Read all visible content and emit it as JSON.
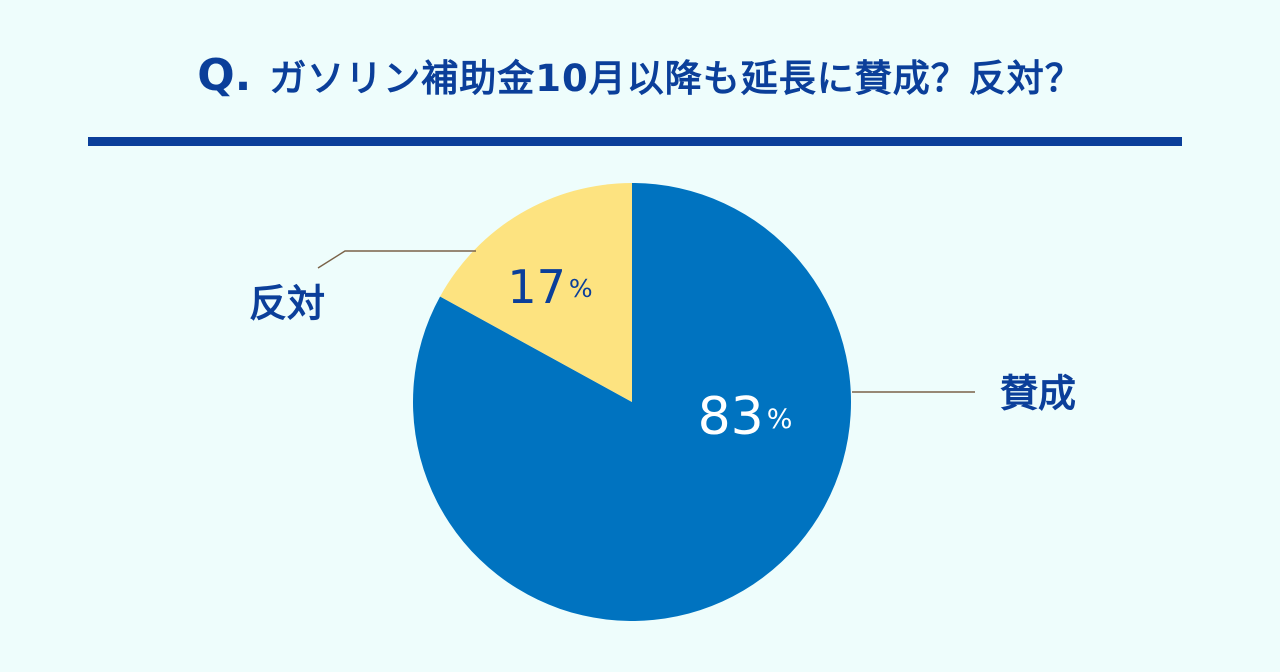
{
  "header": {
    "q_mark": "Q.",
    "question": "ガソリン補助金10月以降も延長に賛成？反対？"
  },
  "colors": {
    "title": "#0b3f9a",
    "divider": "#0b3f9a",
    "background": "#eefdfc",
    "leader_line": "#7a6248",
    "label_outside": "#0b3f9a"
  },
  "chart_data": {
    "type": "pie",
    "title": "ガソリン補助金10月以降も延長に賛成？反対？",
    "start": "top",
    "direction": "clockwise",
    "slices": [
      {
        "label": "賛成",
        "value": 83,
        "value_text": "83",
        "unit": "%",
        "color": "#0073c0",
        "value_color": "#ffffff"
      },
      {
        "label": "反対",
        "value": 17,
        "value_text": "17",
        "unit": "%",
        "color": "#fde380",
        "value_color": "#0b3f9a"
      }
    ]
  }
}
